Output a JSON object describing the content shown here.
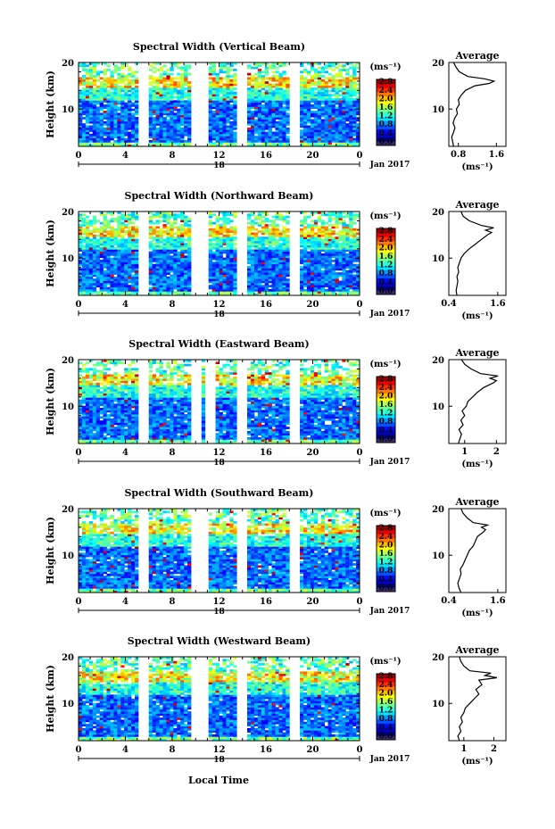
{
  "figure": {
    "x_axis_title": "Local Time",
    "date_label": "Jan 2017",
    "unit_label": "(ms⁻¹)",
    "avg_title": "Average",
    "colormap": "jet",
    "color_levels": [
      0.0,
      0.2,
      0.4,
      0.6,
      0.8,
      1.0,
      1.2,
      1.4,
      1.6,
      1.8,
      2.0,
      2.2,
      2.4,
      2.6,
      2.8
    ]
  },
  "chart_data": [
    {
      "type": "heatmap",
      "title": "Spectral Width (Vertical Beam)",
      "ylabel": "Height (km)",
      "xlabel": "Local Time",
      "x_ticks": [
        "0",
        "4",
        "8",
        "12",
        "16",
        "20",
        "0"
      ],
      "day_label": "18",
      "y_ticks": [
        "10",
        "20"
      ],
      "ylim": [
        2,
        20
      ],
      "xlim": [
        0,
        24
      ],
      "colorbar_ticks": [
        "0.0",
        "0.4",
        "0.8",
        "1.2",
        "1.6",
        "2.0",
        "2.4",
        "2.8"
      ],
      "colorbar_range": [
        0,
        2.9
      ],
      "unit": "(ms⁻¹)",
      "date": "Jan 2017",
      "gap_times": [
        5.5,
        9.9,
        10.6,
        13.8,
        18.5
      ],
      "average_profile": {
        "title": "Average",
        "xlabel": "(ms⁻¹)",
        "x_ticks": [
          "0.8",
          "1.6"
        ],
        "xlim": [
          0.6,
          1.8
        ],
        "height_km": [
          2,
          3,
          4,
          5,
          6,
          7,
          8,
          9,
          10,
          11,
          12,
          13,
          14,
          15,
          15.5,
          16,
          16.5,
          17,
          18,
          19,
          20
        ],
        "values": [
          0.7,
          0.68,
          0.66,
          0.7,
          0.73,
          0.69,
          0.72,
          0.78,
          0.76,
          0.82,
          0.8,
          0.86,
          0.95,
          1.15,
          1.45,
          1.55,
          1.35,
          1.0,
          0.82,
          0.75,
          0.7
        ]
      }
    },
    {
      "type": "heatmap",
      "title": "Spectral Width (Northward Beam)",
      "ylabel": "Height (km)",
      "xlabel": "Local Time",
      "x_ticks": [
        "0",
        "4",
        "8",
        "12",
        "16",
        "20",
        "0"
      ],
      "day_label": "18",
      "y_ticks": [
        "10",
        "20"
      ],
      "ylim": [
        2,
        20
      ],
      "xlim": [
        0,
        24
      ],
      "colorbar_ticks": [
        "0.0",
        "0.4",
        "0.8",
        "1.2",
        "1.6",
        "2.0",
        "2.4",
        "2.8"
      ],
      "colorbar_range": [
        0,
        2.9
      ],
      "unit": "(ms⁻¹)",
      "date": "Jan 2017",
      "gap_times": [
        5.5,
        9.9,
        10.6,
        13.8,
        18.5
      ],
      "average_profile": {
        "title": "Average",
        "xlabel": "(ms⁻¹)",
        "x_ticks": [
          "0.4",
          "1.6"
        ],
        "xlim": [
          0.4,
          1.8
        ],
        "height_km": [
          2,
          3,
          4,
          5,
          6,
          7,
          8,
          9,
          10,
          11,
          12,
          13,
          14,
          15,
          15.5,
          16,
          16.5,
          17,
          18,
          19,
          20
        ],
        "values": [
          0.6,
          0.58,
          0.6,
          0.62,
          0.6,
          0.64,
          0.62,
          0.66,
          0.7,
          0.78,
          0.9,
          1.05,
          1.2,
          1.35,
          1.45,
          1.3,
          1.5,
          1.2,
          0.9,
          0.75,
          0.7
        ]
      }
    },
    {
      "type": "heatmap",
      "title": "Spectral Width (Eastward Beam)",
      "ylabel": "Height (km)",
      "xlabel": "Local Time",
      "x_ticks": [
        "0",
        "4",
        "8",
        "12",
        "16",
        "20",
        "0"
      ],
      "day_label": "18",
      "y_ticks": [
        "10",
        "20"
      ],
      "ylim": [
        2,
        20
      ],
      "xlim": [
        0,
        24
      ],
      "colorbar_ticks": [
        "0.0",
        "0.4",
        "0.8",
        "1.2",
        "1.6",
        "2.0",
        "2.4",
        "2.8"
      ],
      "colorbar_range": [
        0,
        2.9
      ],
      "unit": "(ms⁻¹)",
      "date": "Jan 2017",
      "gap_times": [
        5.5,
        9.9,
        11.2,
        13.8,
        18.5
      ],
      "average_profile": {
        "title": "Average",
        "xlabel": "(ms⁻¹)",
        "x_ticks": [
          "1",
          "2"
        ],
        "xlim": [
          0.5,
          2.3
        ],
        "height_km": [
          2,
          3,
          4,
          5,
          6,
          7,
          8,
          9,
          10,
          11,
          12,
          13,
          14,
          15,
          15.5,
          16,
          16.5,
          17,
          18,
          19,
          20
        ],
        "values": [
          0.8,
          0.85,
          0.9,
          0.82,
          0.95,
          0.88,
          1.0,
          0.92,
          1.05,
          1.1,
          1.25,
          1.4,
          1.6,
          1.9,
          2.0,
          1.8,
          2.05,
          1.5,
          1.2,
          1.0,
          0.9
        ]
      }
    },
    {
      "type": "heatmap",
      "title": "Spectral Width (Southward Beam)",
      "ylabel": "Height (km)",
      "xlabel": "Local Time",
      "x_ticks": [
        "0",
        "4",
        "8",
        "12",
        "16",
        "20",
        "0"
      ],
      "day_label": "18",
      "y_ticks": [
        "10",
        "20"
      ],
      "ylim": [
        2,
        20
      ],
      "xlim": [
        0,
        24
      ],
      "colorbar_ticks": [
        "0.0",
        "0.4",
        "0.8",
        "1.2",
        "1.6",
        "2.0",
        "2.4",
        "2.8"
      ],
      "colorbar_range": [
        0,
        2.9
      ],
      "unit": "(ms⁻¹)",
      "date": "Jan 2017",
      "gap_times": [
        5.5,
        9.9,
        10.6,
        13.8,
        18.5
      ],
      "average_profile": {
        "title": "Average",
        "xlabel": "(ms⁻¹)",
        "x_ticks": [
          "0.4",
          "1.6"
        ],
        "xlim": [
          0.4,
          1.8
        ],
        "height_km": [
          2,
          3,
          4,
          5,
          6,
          7,
          8,
          9,
          10,
          11,
          12,
          13,
          14,
          15,
          15.5,
          16,
          16.5,
          17,
          18,
          19,
          20
        ],
        "values": [
          0.7,
          0.65,
          0.62,
          0.66,
          0.7,
          0.68,
          0.75,
          0.8,
          0.85,
          0.9,
          1.0,
          1.05,
          1.1,
          1.25,
          1.3,
          1.2,
          1.35,
          1.0,
          0.85,
          0.75,
          0.7
        ]
      }
    },
    {
      "type": "heatmap",
      "title": "Spectral Width (Westward Beam)",
      "ylabel": "Height (km)",
      "xlabel": "Local Time",
      "x_ticks": [
        "0",
        "4",
        "8",
        "12",
        "16",
        "20",
        "0"
      ],
      "day_label": "18",
      "y_ticks": [
        "10",
        "20"
      ],
      "ylim": [
        2,
        20
      ],
      "xlim": [
        0,
        24
      ],
      "colorbar_ticks": [
        "0.0",
        "0.4",
        "0.8",
        "1.2",
        "1.6",
        "2.0",
        "2.4",
        "2.8"
      ],
      "colorbar_range": [
        0,
        2.9
      ],
      "unit": "(ms⁻¹)",
      "date": "Jan 2017",
      "gap_times": [
        5.5,
        9.9,
        10.6,
        13.8,
        18.5
      ],
      "average_profile": {
        "title": "Average",
        "xlabel": "(ms⁻¹)",
        "x_ticks": [
          "1",
          "2"
        ],
        "xlim": [
          0.5,
          2.4
        ],
        "height_km": [
          2,
          3,
          4,
          5,
          6,
          7,
          8,
          9,
          10,
          11,
          12,
          13,
          14,
          15,
          15.5,
          16,
          16.5,
          17,
          18,
          19,
          20
        ],
        "values": [
          0.85,
          0.8,
          0.9,
          0.85,
          0.95,
          0.9,
          1.0,
          1.05,
          1.2,
          1.35,
          1.5,
          1.4,
          1.6,
          1.5,
          2.1,
          1.7,
          1.9,
          1.2,
          1.0,
          0.9,
          0.85
        ]
      }
    }
  ]
}
